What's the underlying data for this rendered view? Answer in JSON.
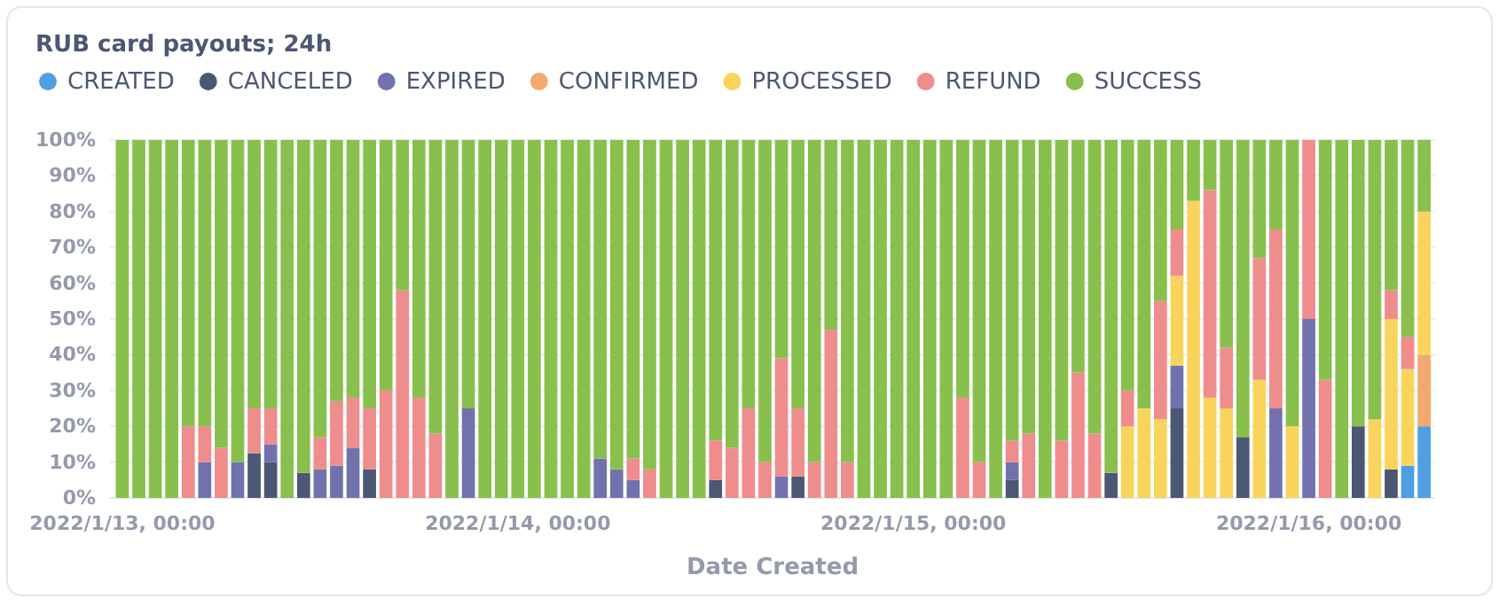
{
  "chart_data": {
    "type": "bar",
    "stacked": true,
    "title": "RUB card payouts; 24h",
    "xlabel": "Date Created",
    "x": [
      "2022-01-13T00:00",
      "2022-01-13T01:00",
      "2022-01-13T02:00",
      "2022-01-13T03:00",
      "2022-01-13T04:00",
      "2022-01-13T05:00",
      "2022-01-13T06:00",
      "2022-01-13T07:00",
      "2022-01-13T08:00",
      "2022-01-13T09:00",
      "2022-01-13T10:00",
      "2022-01-13T11:00",
      "2022-01-13T12:00",
      "2022-01-13T13:00",
      "2022-01-13T14:00",
      "2022-01-13T15:00",
      "2022-01-13T16:00",
      "2022-01-13T17:00",
      "2022-01-13T18:00",
      "2022-01-13T19:00",
      "2022-01-13T20:00",
      "2022-01-13T21:00",
      "2022-01-13T22:00",
      "2022-01-13T23:00",
      "2022-01-14T00:00",
      "2022-01-14T01:00",
      "2022-01-14T02:00",
      "2022-01-14T03:00",
      "2022-01-14T04:00",
      "2022-01-14T05:00",
      "2022-01-14T06:00",
      "2022-01-14T07:00",
      "2022-01-14T08:00",
      "2022-01-14T09:00",
      "2022-01-14T10:00",
      "2022-01-14T11:00",
      "2022-01-14T12:00",
      "2022-01-14T13:00",
      "2022-01-14T14:00",
      "2022-01-14T15:00",
      "2022-01-14T16:00",
      "2022-01-14T17:00",
      "2022-01-14T18:00",
      "2022-01-14T19:00",
      "2022-01-14T20:00",
      "2022-01-14T21:00",
      "2022-01-14T22:00",
      "2022-01-14T23:00",
      "2022-01-15T00:00",
      "2022-01-15T01:00",
      "2022-01-15T02:00",
      "2022-01-15T03:00",
      "2022-01-15T04:00",
      "2022-01-15T05:00",
      "2022-01-15T06:00",
      "2022-01-15T07:00",
      "2022-01-15T08:00",
      "2022-01-15T09:00",
      "2022-01-15T10:00",
      "2022-01-15T11:00",
      "2022-01-15T12:00",
      "2022-01-15T13:00",
      "2022-01-15T14:00",
      "2022-01-15T15:00",
      "2022-01-15T16:00",
      "2022-01-15T17:00",
      "2022-01-15T18:00",
      "2022-01-15T19:00",
      "2022-01-15T20:00",
      "2022-01-15T21:00",
      "2022-01-15T22:00",
      "2022-01-15T23:00",
      "2022-01-16T00:00",
      "2022-01-16T01:00",
      "2022-01-16T02:00",
      "2022-01-16T03:00",
      "2022-01-16T04:00",
      "2022-01-16T05:00",
      "2022-01-16T06:00",
      "2022-01-16T07:00"
    ],
    "xlim": [
      "2022-01-12T23:15",
      "2022-01-16T07:40"
    ],
    "xticks": [
      {
        "value": "2022-01-13T00:00",
        "label": "2022/1/13, 00:00"
      },
      {
        "value": "2022-01-14T00:00",
        "label": "2022/1/14, 00:00"
      },
      {
        "value": "2022-01-15T00:00",
        "label": "2022/1/15, 00:00"
      },
      {
        "value": "2022-01-16T00:00",
        "label": "2022/1/16, 00:00"
      }
    ],
    "ylim": [
      0,
      100
    ],
    "yticks": [
      {
        "value": 0,
        "label": "0%"
      },
      {
        "value": 10,
        "label": "10%"
      },
      {
        "value": 20,
        "label": "20%"
      },
      {
        "value": 30,
        "label": "30%"
      },
      {
        "value": 40,
        "label": "40%"
      },
      {
        "value": 50,
        "label": "50%"
      },
      {
        "value": 60,
        "label": "60%"
      },
      {
        "value": 70,
        "label": "70%"
      },
      {
        "value": 80,
        "label": "80%"
      },
      {
        "value": 90,
        "label": "90%"
      },
      {
        "value": 100,
        "label": "100%"
      }
    ],
    "grid": "y",
    "legend": "top left",
    "series": [
      {
        "name": "CREATED",
        "color": "#509ee3",
        "values": [
          0,
          0,
          0,
          0,
          0,
          0,
          0,
          0,
          0,
          0,
          0,
          0,
          0,
          0,
          0,
          0,
          0,
          0,
          0,
          0,
          0,
          0,
          0,
          0,
          0,
          0,
          0,
          0,
          0,
          0,
          0,
          0,
          0,
          0,
          0,
          0,
          0,
          0,
          0,
          0,
          0,
          0,
          0,
          0,
          0,
          0,
          0,
          0,
          0,
          0,
          0,
          0,
          0,
          0,
          0,
          0,
          0,
          0,
          0,
          0,
          0,
          0,
          0,
          0,
          0,
          0,
          0,
          0,
          0,
          0,
          0,
          0,
          0,
          0,
          0,
          0,
          0,
          0,
          9,
          20
        ]
      },
      {
        "name": "CANCELED",
        "color": "#4c5773",
        "values": [
          0,
          0,
          0,
          0,
          0,
          0,
          0,
          0,
          12.5,
          10,
          0,
          7,
          0,
          0,
          0,
          8,
          0,
          0,
          0,
          0,
          0,
          0,
          0,
          0,
          0,
          0,
          0,
          0,
          0,
          0,
          0,
          0,
          0,
          0,
          0,
          0,
          5,
          0,
          0,
          0,
          0,
          6,
          0,
          0,
          0,
          0,
          0,
          0,
          0,
          0,
          0,
          0,
          0,
          0,
          5,
          0,
          0,
          0,
          0,
          0,
          7,
          0,
          0,
          0,
          25,
          0,
          0,
          0,
          17,
          0,
          0,
          0,
          0,
          0,
          0,
          20,
          0,
          8,
          0,
          0
        ]
      },
      {
        "name": "EXPIRED",
        "color": "#7172ad",
        "values": [
          0,
          0,
          0,
          0,
          0,
          10,
          0,
          10,
          0,
          5,
          0,
          0,
          8,
          9,
          14,
          0,
          0,
          0,
          0,
          0,
          0,
          25,
          0,
          0,
          0,
          0,
          0,
          0,
          0,
          11,
          8,
          5,
          0,
          0,
          0,
          0,
          0,
          0,
          0,
          0,
          6,
          0,
          0,
          0,
          0,
          0,
          0,
          0,
          0,
          0,
          0,
          0,
          0,
          0,
          5,
          0,
          0,
          0,
          0,
          0,
          0,
          0,
          0,
          0,
          12,
          0,
          0,
          0,
          0,
          0,
          25,
          0,
          50,
          0,
          0,
          0,
          0,
          0,
          0,
          0
        ]
      },
      {
        "name": "CONFIRMED",
        "color": "#f2a86f",
        "values": [
          0,
          0,
          0,
          0,
          0,
          0,
          0,
          0,
          0,
          0,
          0,
          0,
          0,
          0,
          0,
          0,
          0,
          0,
          0,
          0,
          0,
          0,
          0,
          0,
          0,
          0,
          0,
          0,
          0,
          0,
          0,
          0,
          0,
          0,
          0,
          0,
          0,
          0,
          0,
          0,
          0,
          0,
          0,
          0,
          0,
          0,
          0,
          0,
          0,
          0,
          0,
          0,
          0,
          0,
          0,
          0,
          0,
          0,
          0,
          0,
          0,
          0,
          0,
          0,
          0,
          0,
          0,
          0,
          0,
          0,
          0,
          0,
          0,
          0,
          0,
          0,
          0,
          0,
          0,
          20
        ]
      },
      {
        "name": "PROCESSED",
        "color": "#f9d45c",
        "values": [
          0,
          0,
          0,
          0,
          0,
          0,
          0,
          0,
          0,
          0,
          0,
          0,
          0,
          0,
          0,
          0,
          0,
          0,
          0,
          0,
          0,
          0,
          0,
          0,
          0,
          0,
          0,
          0,
          0,
          0,
          0,
          0,
          0,
          0,
          0,
          0,
          0,
          0,
          0,
          0,
          0,
          0,
          0,
          0,
          0,
          0,
          0,
          0,
          0,
          0,
          0,
          0,
          0,
          0,
          0,
          0,
          0,
          0,
          0,
          0,
          0,
          20,
          25,
          22,
          25,
          83,
          28,
          25,
          0,
          33,
          0,
          20,
          0,
          0,
          0,
          0,
          22,
          42,
          27,
          40
        ]
      },
      {
        "name": "REFUND",
        "color": "#ef8c8c",
        "values": [
          0,
          0,
          0,
          0,
          20,
          10,
          14,
          0,
          12.5,
          10,
          0,
          0,
          9,
          18,
          14,
          17,
          30,
          58,
          28,
          18,
          0,
          0,
          0,
          0,
          0,
          0,
          0,
          0,
          0,
          0,
          0,
          6,
          8,
          0,
          0,
          0,
          11,
          14,
          25,
          10,
          33,
          19,
          10,
          47,
          10,
          0,
          0,
          0,
          0,
          0,
          0,
          28,
          10,
          0,
          6,
          18,
          0,
          16,
          35,
          18,
          0,
          10,
          0,
          33,
          13,
          0,
          58,
          17,
          0,
          34,
          50,
          0,
          50,
          33,
          0,
          0,
          0,
          8,
          9,
          0
        ]
      },
      {
        "name": "SUCCESS",
        "color": "#88bf4d",
        "values": [
          100,
          100,
          100,
          100,
          80,
          80,
          86,
          90,
          75,
          75,
          100,
          93,
          83,
          73,
          72,
          75,
          70,
          42,
          72,
          82,
          100,
          75,
          100,
          100,
          100,
          100,
          100,
          100,
          100,
          89,
          92,
          89,
          92,
          100,
          100,
          100,
          84,
          86,
          75,
          90,
          61,
          75,
          90,
          53,
          90,
          100,
          100,
          100,
          100,
          100,
          100,
          72,
          90,
          100,
          84,
          82,
          100,
          84,
          65,
          82,
          93,
          70,
          75,
          45,
          25,
          17,
          14,
          58,
          83,
          33,
          25,
          80,
          0,
          67,
          100,
          80,
          78,
          42,
          55,
          20
        ]
      }
    ]
  }
}
